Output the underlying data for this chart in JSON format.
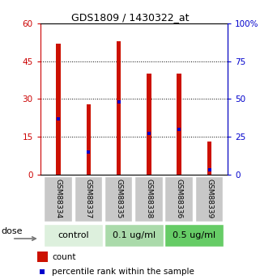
{
  "title": "GDS1809 / 1430322_at",
  "samples": [
    "GSM88334",
    "GSM88337",
    "GSM88335",
    "GSM88338",
    "GSM88336",
    "GSM88339"
  ],
  "bar_values": [
    52,
    28,
    53,
    40,
    40,
    13
  ],
  "percentile_values": [
    37,
    15,
    48,
    27,
    30,
    3
  ],
  "bar_color": "#cc1100",
  "marker_color": "#0000cc",
  "left_ylim": [
    0,
    60
  ],
  "right_ylim": [
    0,
    100
  ],
  "left_yticks": [
    0,
    15,
    30,
    45,
    60
  ],
  "right_yticks": [
    0,
    25,
    50,
    75,
    100
  ],
  "right_yticklabels": [
    "0",
    "25",
    "50",
    "75",
    "100%"
  ],
  "groups": [
    {
      "label": "control",
      "indices": [
        0,
        1
      ],
      "color": "#ddf0dd"
    },
    {
      "label": "0.1 ug/ml",
      "indices": [
        2,
        3
      ],
      "color": "#aadaaa"
    },
    {
      "label": "0.5 ug/ml",
      "indices": [
        4,
        5
      ],
      "color": "#66cc66"
    }
  ],
  "dose_label": "dose",
  "legend_count_label": "count",
  "legend_pct_label": "percentile rank within the sample",
  "bar_width": 0.15,
  "left_axis_color": "#cc0000",
  "right_axis_color": "#0000cc",
  "tick_label_area_color": "#c8c8c8"
}
